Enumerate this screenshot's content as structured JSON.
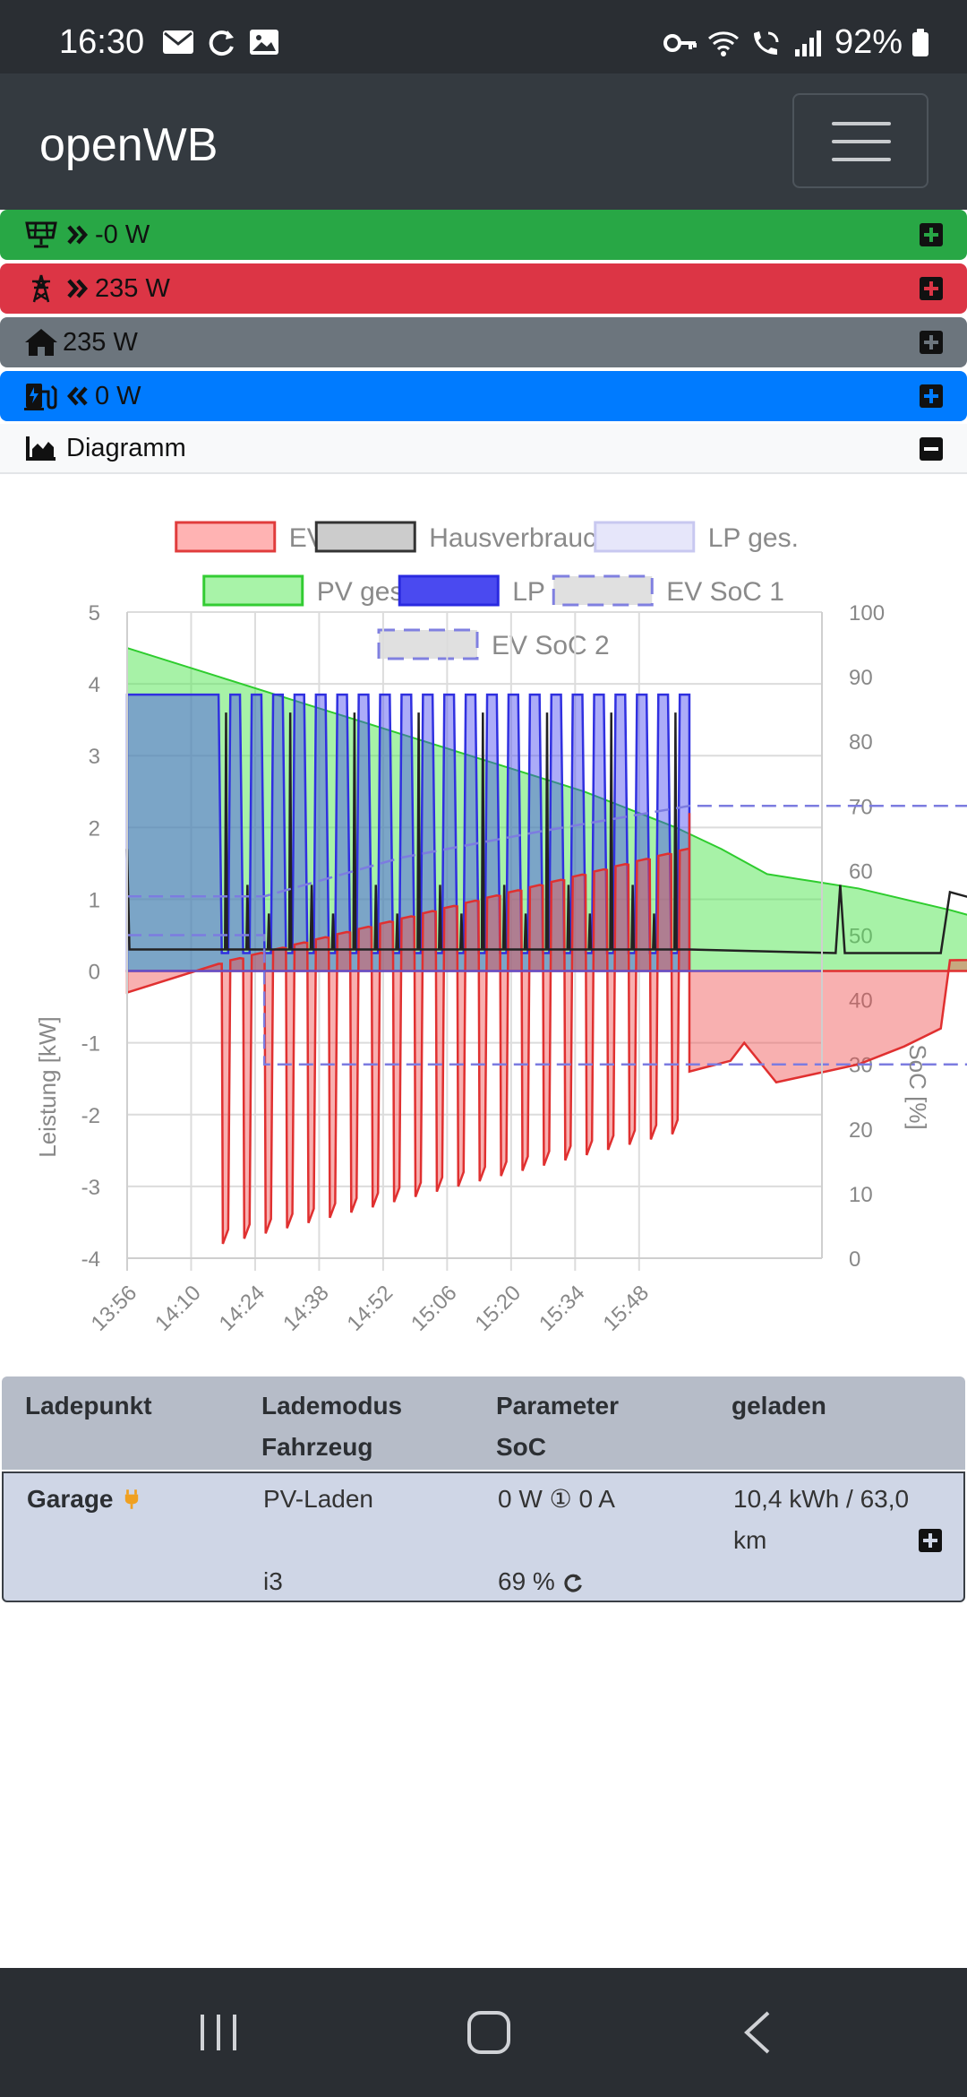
{
  "status_bar": {
    "time": "16:30",
    "battery": "92%",
    "left_icons": [
      "mail-icon",
      "sync-icon",
      "image-icon"
    ],
    "right_icons": [
      "key-icon",
      "wifi-icon",
      "wifi-call-icon",
      "signal-icon",
      "battery-icon"
    ]
  },
  "navbar": {
    "brand": "openWB",
    "menu_icon": "hamburger-icon"
  },
  "power_bars": [
    {
      "label": "-0 W",
      "color": "#28a745",
      "icon": "solar-panel-icon",
      "arrow": "double-right-icon"
    },
    {
      "label": "235 W",
      "color": "#dc3545",
      "icon": "power-pylon-icon",
      "arrow": "double-right-icon"
    },
    {
      "label": "235 W",
      "color": "#6c757d",
      "icon": "home-icon",
      "arrow": ""
    },
    {
      "label": "0 W",
      "color": "#007bff",
      "icon": "charging-station-icon",
      "arrow": "double-left-icon"
    }
  ],
  "diagram_header": {
    "label": "Diagramm",
    "icon": "area-chart-icon",
    "toggle_icon": "minus-square-icon"
  },
  "chart_data": {
    "type": "line",
    "legend": [
      {
        "name": "EVU",
        "fill": "#ffb3b3",
        "stroke": "#e03c3c",
        "dashed": false
      },
      {
        "name": "Hausverbrauch",
        "fill": "#cccccc",
        "stroke": "#333333",
        "dashed": false
      },
      {
        "name": "LP ges.",
        "fill": "#e6e6fa",
        "stroke": "#c8c8f0",
        "dashed": false
      },
      {
        "name": "PV ges.",
        "fill": "#a8f3a8",
        "stroke": "#33cc33",
        "dashed": false
      },
      {
        "name": "LP 1",
        "fill": "#4a4af0",
        "stroke": "#2a2ae0",
        "dashed": false
      },
      {
        "name": "EV SoC 1",
        "fill": "#e0e0e0",
        "stroke": "#8080e0",
        "dashed": true
      },
      {
        "name": "EV SoC 2",
        "fill": "#e0e0e0",
        "stroke": "#8080e0",
        "dashed": true
      }
    ],
    "x_ticks": [
      "13:56",
      "14:10",
      "14:24",
      "14:38",
      "14:52",
      "15:06",
      "15:20",
      "15:34",
      "15:48"
    ],
    "ylabel_left": "Leistung [kW]",
    "ylabel_right": "SoC [%]",
    "y_left_ticks": [
      "5",
      "4",
      "3",
      "2",
      "1",
      "0",
      "-1",
      "-2",
      "-3",
      "-4"
    ],
    "y_right_ticks": [
      "100",
      "90",
      "80",
      "70",
      "60",
      "50",
      "40",
      "30",
      "20",
      "10",
      "0"
    ],
    "ylim_left": [
      -4,
      5
    ],
    "ylim_right": [
      0,
      100
    ],
    "time_range": [
      "13:56",
      "16:28"
    ],
    "series": {
      "pv": [
        [
          0,
          4.5
        ],
        [
          20,
          4.1
        ],
        [
          40,
          3.7
        ],
        [
          60,
          3.3
        ],
        [
          80,
          2.9
        ],
        [
          100,
          2.5
        ],
        [
          120,
          2.0
        ],
        [
          130,
          1.7
        ],
        [
          140,
          1.35
        ],
        [
          150,
          1.25
        ],
        [
          160,
          1.15
        ],
        [
          180,
          0.85
        ],
        [
          200,
          0.5
        ],
        [
          220,
          0.15
        ],
        [
          232,
          0
        ]
      ],
      "lp1_cycle": {
        "start": 20,
        "end": 123,
        "high": 3.85,
        "base_low": 0.25
      },
      "evu_neg_peaks": [
        [
          20,
          -3.8
        ],
        [
          123,
          -2.2
        ]
      ],
      "house_base": 0.3,
      "soc1": [
        [
          0,
          50
        ],
        [
          30,
          50
        ],
        [
          30,
          30
        ],
        [
          232,
          30
        ]
      ],
      "soc2": [
        [
          0,
          56
        ],
        [
          30,
          56
        ],
        [
          40,
          58
        ],
        [
          60,
          62
        ],
        [
          90,
          66
        ],
        [
          123,
          70
        ],
        [
          232,
          70
        ]
      ]
    }
  },
  "table": {
    "headers": {
      "col1": "Ladepunkt",
      "col2a": "Lademodus",
      "col2b": "Fahrzeug",
      "col3a": "Parameter",
      "col3b": "SoC",
      "col4": "geladen"
    },
    "row": {
      "name": "Garage",
      "mode": "PV-Laden",
      "vehicle": "i3",
      "power": "0 W",
      "phase": "①",
      "current": "0 A",
      "soc": "69 %",
      "charged_line1": "10,4 kWh / 63,0",
      "charged_line2": "km"
    }
  },
  "nav_footer": [
    "recent-apps-icon",
    "home-button-icon",
    "back-icon"
  ]
}
